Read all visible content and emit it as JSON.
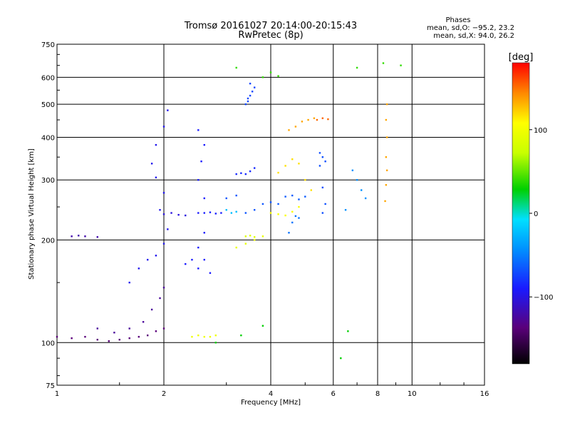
{
  "chart_data": {
    "type": "scatter",
    "title": "Tromsø 20161027 20:14:00-20:15:43",
    "subtitle": "RwPretec (8p)",
    "xlabel": "Frequency [MHz]",
    "ylabel": "Stationary phase Virtual Height [km]",
    "x_scale": "log",
    "y_scale": "log",
    "xlim": [
      1,
      16
    ],
    "ylim": [
      75,
      750
    ],
    "x_ticks": [
      1,
      2,
      4,
      6,
      8,
      10,
      16
    ],
    "x_tick_labels": [
      "1",
      "2",
      "4",
      "6",
      "8",
      "10",
      "16"
    ],
    "y_ticks": [
      75,
      100,
      200,
      300,
      400,
      500,
      600,
      750
    ],
    "y_tick_labels": [
      "75",
      "100",
      "200",
      "300",
      "400",
      "500",
      "600",
      "750"
    ],
    "grid": true,
    "phase_stats": {
      "heading": "Phases",
      "line_o": "mean, sd,O: −95.2, 23.2",
      "line_x": "mean, sd,X:  94.0, 26.2"
    },
    "colorbar": {
      "label": "[deg]",
      "range": [
        -180,
        180
      ],
      "ticks": [
        100,
        0,
        -100
      ],
      "tick_labels": [
        "100",
        "0",
        "−100"
      ]
    },
    "series": [
      {
        "points": [
          [
            1.0,
            104
          ],
          [
            1.1,
            103
          ],
          [
            1.2,
            104
          ],
          [
            1.3,
            102
          ],
          [
            1.4,
            101
          ],
          [
            1.5,
            102
          ],
          [
            1.6,
            103
          ],
          [
            1.7,
            104
          ],
          [
            1.8,
            105
          ],
          [
            1.9,
            108
          ],
          [
            2.0,
            110
          ]
        ],
        "phase": -140
      },
      {
        "points": [
          [
            1.3,
            110
          ],
          [
            1.45,
            107
          ],
          [
            1.6,
            110
          ],
          [
            1.75,
            115
          ],
          [
            1.85,
            125
          ],
          [
            1.95,
            135
          ],
          [
            2.0,
            145
          ]
        ],
        "phase": -130
      },
      {
        "points": [
          [
            1.1,
            205
          ],
          [
            1.15,
            206
          ],
          [
            1.2,
            205
          ],
          [
            1.3,
            204
          ]
        ],
        "phase": -125
      },
      {
        "points": [
          [
            1.6,
            150
          ],
          [
            1.7,
            165
          ],
          [
            1.8,
            175
          ],
          [
            1.9,
            180
          ],
          [
            2.0,
            195
          ],
          [
            2.05,
            215
          ],
          [
            1.95,
            245
          ],
          [
            2.0,
            275
          ],
          [
            1.9,
            305
          ],
          [
            1.85,
            335
          ],
          [
            1.9,
            380
          ],
          [
            2.0,
            430
          ],
          [
            2.05,
            480
          ]
        ],
        "phase": -105
      },
      {
        "points": [
          [
            2.0,
            238
          ],
          [
            2.1,
            240
          ],
          [
            2.2,
            237
          ],
          [
            2.3,
            236
          ]
        ],
        "phase": -110
      },
      {
        "points": [
          [
            2.3,
            170
          ],
          [
            2.4,
            175
          ],
          [
            2.5,
            165
          ],
          [
            2.6,
            175
          ],
          [
            2.7,
            160
          ],
          [
            2.5,
            190
          ],
          [
            2.6,
            210
          ],
          [
            2.5,
            240
          ],
          [
            2.6,
            265
          ],
          [
            2.5,
            300
          ],
          [
            2.55,
            340
          ],
          [
            2.6,
            380
          ],
          [
            2.5,
            420
          ]
        ],
        "phase": -100
      },
      {
        "points": [
          [
            2.6,
            240
          ],
          [
            2.7,
            241
          ],
          [
            2.8,
            239
          ],
          [
            2.9,
            240
          ]
        ],
        "phase": -98
      },
      {
        "points": [
          [
            3.2,
            312
          ],
          [
            3.3,
            314
          ],
          [
            3.4,
            312
          ],
          [
            3.5,
            318
          ],
          [
            3.6,
            325
          ]
        ],
        "phase": -95
      },
      {
        "points": [
          [
            3.4,
            500
          ],
          [
            3.45,
            510
          ],
          [
            3.5,
            530
          ],
          [
            3.55,
            545
          ],
          [
            3.6,
            560
          ],
          [
            3.5,
            575
          ],
          [
            3.45,
            520
          ]
        ],
        "phase": -85
      },
      {
        "points": [
          [
            3.0,
            265
          ],
          [
            3.2,
            270
          ],
          [
            3.4,
            240
          ],
          [
            3.6,
            245
          ],
          [
            3.8,
            255
          ],
          [
            4.0,
            258
          ]
        ],
        "phase": -80
      },
      {
        "points": [
          [
            4.2,
            255
          ],
          [
            4.4,
            268
          ],
          [
            4.6,
            270
          ],
          [
            4.8,
            263
          ],
          [
            5.0,
            268
          ]
        ],
        "phase": -78
      },
      {
        "points": [
          [
            5.5,
            360
          ],
          [
            5.6,
            350
          ],
          [
            5.7,
            340
          ],
          [
            5.5,
            330
          ],
          [
            5.6,
            285
          ],
          [
            5.7,
            255
          ],
          [
            5.6,
            240
          ]
        ],
        "phase": -82
      },
      {
        "points": [
          [
            4.5,
            210
          ],
          [
            4.6,
            225
          ],
          [
            4.7,
            235
          ],
          [
            4.8,
            232
          ]
        ],
        "phase": -70
      },
      {
        "points": [
          [
            6.8,
            320
          ],
          [
            7.0,
            300
          ],
          [
            7.2,
            280
          ],
          [
            7.4,
            265
          ],
          [
            6.5,
            245
          ]
        ],
        "phase": -60
      },
      {
        "points": [
          [
            3.0,
            245
          ],
          [
            3.1,
            240
          ],
          [
            3.2,
            242
          ]
        ],
        "phase": -40
      },
      {
        "points": [
          [
            3.4,
            205
          ],
          [
            3.5,
            206
          ],
          [
            3.6,
            204
          ]
        ],
        "phase": 70
      },
      {
        "points": [
          [
            2.4,
            104
          ],
          [
            2.5,
            105
          ],
          [
            2.6,
            104
          ],
          [
            2.7,
            104
          ],
          [
            2.8,
            105
          ]
        ],
        "phase": 85
      },
      {
        "points": [
          [
            3.2,
            190
          ],
          [
            3.4,
            195
          ],
          [
            3.6,
            200
          ],
          [
            3.8,
            205
          ]
        ],
        "phase": 80
      },
      {
        "points": [
          [
            4.0,
            240
          ],
          [
            4.2,
            238
          ],
          [
            4.4,
            236
          ],
          [
            4.6,
            242
          ],
          [
            4.8,
            250
          ]
        ],
        "phase": 95
      },
      {
        "points": [
          [
            4.2,
            315
          ],
          [
            4.4,
            330
          ],
          [
            4.6,
            345
          ],
          [
            4.8,
            335
          ],
          [
            5.0,
            300
          ],
          [
            5.2,
            280
          ]
        ],
        "phase": 110
      },
      {
        "points": [
          [
            4.5,
            420
          ],
          [
            4.7,
            430
          ],
          [
            4.9,
            445
          ],
          [
            5.1,
            450
          ],
          [
            5.3,
            455
          ]
        ],
        "phase": 130
      },
      {
        "points": [
          [
            5.4,
            450
          ],
          [
            5.6,
            455
          ],
          [
            5.8,
            452
          ]
        ],
        "phase": 150
      },
      {
        "points": [
          [
            8.4,
            260
          ],
          [
            8.45,
            290
          ],
          [
            8.5,
            320
          ],
          [
            8.45,
            350
          ],
          [
            8.5,
            400
          ],
          [
            8.45,
            450
          ],
          [
            8.5,
            500
          ]
        ],
        "phase": 130
      },
      {
        "points": [
          [
            3.8,
            600
          ],
          [
            4.0,
            620
          ],
          [
            4.2,
            605
          ],
          [
            3.2,
            640
          ],
          [
            7.0,
            640
          ],
          [
            8.3,
            660
          ],
          [
            9.3,
            650
          ]
        ],
        "phase": 20
      },
      {
        "points": [
          [
            2.8,
            100
          ],
          [
            3.3,
            105
          ],
          [
            3.8,
            112
          ],
          [
            6.6,
            108
          ],
          [
            6.3,
            90
          ]
        ],
        "phase": 10
      }
    ]
  }
}
